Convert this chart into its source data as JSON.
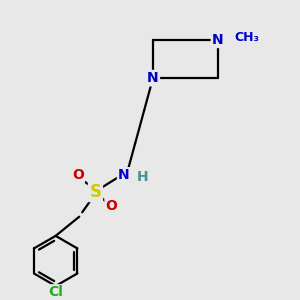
{
  "background_color": "#e8e8e8",
  "figsize": [
    3.0,
    3.0
  ],
  "dpi": 100,
  "atom_colors": {
    "C": "#000000",
    "N": "#0000cc",
    "N_methyl": "#0000cc",
    "H": "#4a9090",
    "S": "#cccc00",
    "O": "#cc0000",
    "Cl": "#22aa22"
  },
  "bond_color": "#000000",
  "bond_lw": 1.6,
  "font_size_atom": 10,
  "font_size_small": 9,
  "font_size_S": 12
}
